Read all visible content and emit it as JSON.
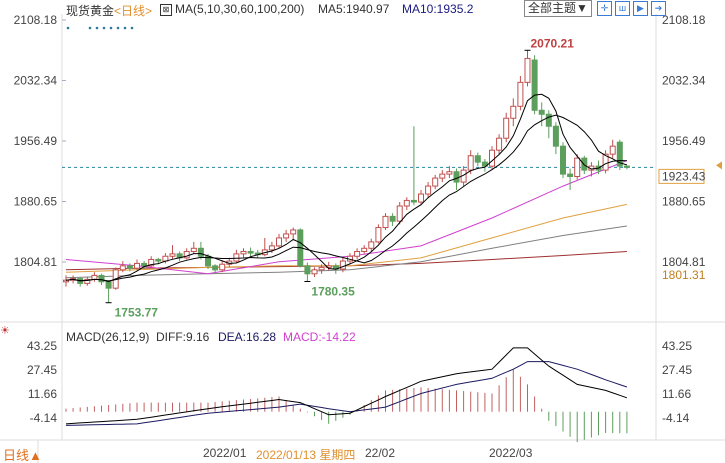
{
  "header": {
    "instrument": "现货黄金",
    "period": "<日线>",
    "ma_label": "MA(5,10,30,60,100,200)",
    "ma5": "MA5:1940.97",
    "ma10": "MA10:1935.2",
    "theme_button": "全部主题▼",
    "icons": [
      "crosshair-icon",
      "candle-icon",
      "play-icon",
      "exit-icon"
    ]
  },
  "macd_header": {
    "label": "MACD(26,12,9)",
    "diff": "DIFF:9.16",
    "dea": "DEA:16.28",
    "macd": "MACD:-14.22"
  },
  "footer": {
    "period_button": "日线▲",
    "dates": [
      "2022/01",
      "22/02",
      "2022/03"
    ],
    "cursor_date": "2022/01/13 星期四"
  },
  "colors": {
    "up": "#c0504d",
    "down": "#5c9e5c",
    "ma5": "#000000",
    "ma10": "#000000",
    "ma30": "#d040d0",
    "ma60": "#e0a040",
    "ma100": "#808080",
    "ma200": "#a03030",
    "dea": "#1a1a60",
    "macd": "#d040d0",
    "cursor_date": "#e09030",
    "last_price_line": "#2a8aa0"
  },
  "chart_data": [
    {
      "type": "candlestick",
      "price_ticks": [
        "2108.18",
        "2032.34",
        "1956.49",
        "1880.65",
        "1804.81"
      ],
      "ylim": [
        1753.77,
        2108.18
      ],
      "annotations": {
        "high": "2070.21",
        "low1": "1753.77",
        "low2": "1780.35"
      },
      "last_price": "1923.43",
      "ma_tag": "1801.31",
      "ohlc": [
        [
          1780,
          1788,
          1774,
          1782
        ],
        [
          1782,
          1788,
          1778,
          1784
        ],
        [
          1784,
          1786,
          1774,
          1778
        ],
        [
          1778,
          1786,
          1775,
          1783
        ],
        [
          1783,
          1792,
          1780,
          1788
        ],
        [
          1788,
          1790,
          1776,
          1780
        ],
        [
          1780,
          1782,
          1753.77,
          1772
        ],
        [
          1772,
          1798,
          1770,
          1795
        ],
        [
          1795,
          1806,
          1792,
          1800
        ],
        [
          1800,
          1803,
          1793,
          1797
        ],
        [
          1797,
          1808,
          1795,
          1803
        ],
        [
          1803,
          1806,
          1796,
          1800
        ],
        [
          1800,
          1812,
          1798,
          1808
        ],
        [
          1808,
          1810,
          1802,
          1806
        ],
        [
          1806,
          1816,
          1803,
          1812
        ],
        [
          1812,
          1826,
          1808,
          1815
        ],
        [
          1815,
          1818,
          1806,
          1810
        ],
        [
          1810,
          1822,
          1808,
          1818
        ],
        [
          1818,
          1830,
          1815,
          1822
        ],
        [
          1822,
          1830,
          1808,
          1812
        ],
        [
          1812,
          1815,
          1796,
          1800
        ],
        [
          1800,
          1802,
          1790,
          1795
        ],
        [
          1795,
          1806,
          1792,
          1802
        ],
        [
          1802,
          1810,
          1799,
          1806
        ],
        [
          1806,
          1820,
          1804,
          1815
        ],
        [
          1815,
          1822,
          1810,
          1818
        ],
        [
          1818,
          1823,
          1812,
          1816
        ],
        [
          1816,
          1820,
          1810,
          1814
        ],
        [
          1814,
          1835,
          1812,
          1820
        ],
        [
          1820,
          1830,
          1816,
          1825
        ],
        [
          1825,
          1840,
          1822,
          1835
        ],
        [
          1835,
          1845,
          1830,
          1840
        ],
        [
          1840,
          1848,
          1832,
          1845
        ],
        [
          1845,
          1847,
          1798,
          1800
        ],
        [
          1800,
          1804,
          1780.35,
          1790
        ],
        [
          1790,
          1798,
          1786,
          1795
        ],
        [
          1795,
          1802,
          1790,
          1798
        ],
        [
          1798,
          1805,
          1794,
          1800
        ],
        [
          1800,
          1803,
          1790,
          1796
        ],
        [
          1796,
          1810,
          1792,
          1806
        ],
        [
          1806,
          1816,
          1803,
          1812
        ],
        [
          1812,
          1822,
          1808,
          1818
        ],
        [
          1818,
          1826,
          1815,
          1822
        ],
        [
          1822,
          1834,
          1818,
          1830
        ],
        [
          1830,
          1852,
          1828,
          1848
        ],
        [
          1848,
          1866,
          1845,
          1862
        ],
        [
          1862,
          1866,
          1850,
          1856
        ],
        [
          1856,
          1880,
          1852,
          1875
        ],
        [
          1875,
          1886,
          1870,
          1882
        ],
        [
          1882,
          1975,
          1876,
          1880
        ],
        [
          1880,
          1895,
          1876,
          1890
        ],
        [
          1890,
          1905,
          1885,
          1900
        ],
        [
          1900,
          1914,
          1896,
          1910
        ],
        [
          1910,
          1920,
          1905,
          1915
        ],
        [
          1915,
          1925,
          1910,
          1918
        ],
        [
          1918,
          1922,
          1895,
          1905
        ],
        [
          1905,
          1925,
          1900,
          1920
        ],
        [
          1920,
          1945,
          1915,
          1938
        ],
        [
          1938,
          1942,
          1925,
          1930
        ],
        [
          1930,
          1934,
          1918,
          1925
        ],
        [
          1925,
          1950,
          1920,
          1945
        ],
        [
          1945,
          1965,
          1940,
          1960
        ],
        [
          1960,
          1992,
          1955,
          1985
        ],
        [
          1985,
          2010,
          1975,
          2000
        ],
        [
          2000,
          2038,
          1995,
          2030
        ],
        [
          2030,
          2070.21,
          2025,
          2060
        ],
        [
          2058,
          2064,
          1990,
          1995
        ],
        [
          1995,
          2005,
          1975,
          1990
        ],
        [
          1990,
          1995,
          1960,
          1975
        ],
        [
          1975,
          1980,
          1940,
          1950
        ],
        [
          1950,
          1955,
          1910,
          1915
        ],
        [
          1915,
          1922,
          1895,
          1912
        ],
        [
          1912,
          1940,
          1908,
          1935
        ],
        [
          1935,
          1938,
          1915,
          1920
        ],
        [
          1920,
          1930,
          1912,
          1925
        ],
        [
          1925,
          1932,
          1915,
          1920
        ],
        [
          1920,
          1945,
          1916,
          1940
        ],
        [
          1940,
          1958,
          1935,
          1950
        ],
        [
          1955,
          1958,
          1920,
          1925
        ],
        [
          1925,
          1926,
          1921,
          1923.43
        ]
      ],
      "long_ma_sample_index": [
        0,
        10,
        20,
        30,
        40,
        50,
        60,
        70,
        79
      ],
      "ma30": [
        1808,
        1800,
        1790,
        1805,
        1812,
        1825,
        1860,
        1900,
        1932
      ],
      "ma60": [
        1792,
        1795,
        1798,
        1800,
        1800,
        1810,
        1835,
        1860,
        1877
      ],
      "ma100": [
        1785,
        1788,
        1790,
        1792,
        1795,
        1805,
        1822,
        1838,
        1850
      ],
      "ma200": [
        1795,
        1797,
        1798,
        1799,
        1800,
        1803,
        1808,
        1813,
        1818
      ]
    },
    {
      "type": "macd",
      "ticks": [
        "43.25",
        "27.45",
        "11.66",
        "-4.14"
      ],
      "ylim": [
        -14.22,
        43.25
      ],
      "sample_index": [
        0,
        10,
        20,
        30,
        33,
        37,
        40,
        45,
        50,
        55,
        60,
        63,
        65,
        68,
        72,
        76,
        79
      ],
      "diff": [
        -8,
        -5,
        2,
        8,
        6,
        -2,
        -1,
        10,
        20,
        25,
        28,
        42,
        42,
        30,
        18,
        14,
        9.16
      ],
      "dea": [
        -9,
        -8,
        -1,
        3,
        5,
        2,
        0,
        3,
        12,
        18,
        22,
        28,
        33,
        33,
        28,
        21,
        16.28
      ]
    }
  ]
}
